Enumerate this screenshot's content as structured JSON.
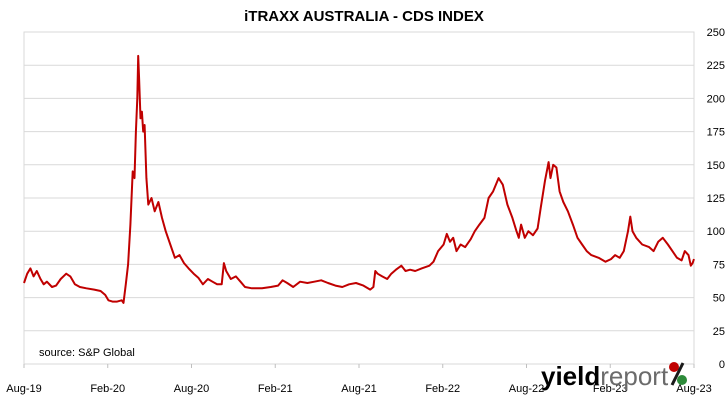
{
  "chart_data": {
    "type": "line",
    "title": "iTRAXX AUSTRALIA - CDS INDEX",
    "xlabel": "",
    "ylabel": "",
    "source_note": "source: S&P Global",
    "logo": {
      "text_bold": "yield",
      "text_light": "report",
      "symbol": "%"
    },
    "ylim": [
      0,
      250
    ],
    "y_ticks": [
      0,
      25,
      50,
      75,
      100,
      125,
      150,
      175,
      200,
      225,
      250
    ],
    "x_ticks": [
      "Aug-19",
      "Feb-20",
      "Aug-20",
      "Feb-21",
      "Aug-21",
      "Feb-22",
      "Aug-22",
      "Feb-23",
      "Aug-23"
    ],
    "x_range": [
      "2019-08-01",
      "2023-08-01"
    ],
    "grid": true,
    "series": [
      {
        "color": "#c00000",
        "points": [
          [
            "2019-08-01",
            61
          ],
          [
            "2019-08-08",
            68
          ],
          [
            "2019-08-15",
            72
          ],
          [
            "2019-08-22",
            66
          ],
          [
            "2019-08-29",
            70
          ],
          [
            "2019-09-06",
            64
          ],
          [
            "2019-09-13",
            60
          ],
          [
            "2019-09-20",
            62
          ],
          [
            "2019-10-01",
            58
          ],
          [
            "2019-10-10",
            59
          ],
          [
            "2019-10-20",
            64
          ],
          [
            "2019-11-01",
            68
          ],
          [
            "2019-11-10",
            66
          ],
          [
            "2019-11-20",
            60
          ],
          [
            "2019-12-01",
            58
          ],
          [
            "2019-12-15",
            57
          ],
          [
            "2020-01-01",
            56
          ],
          [
            "2020-01-15",
            55
          ],
          [
            "2020-01-25",
            52
          ],
          [
            "2020-02-01",
            48
          ],
          [
            "2020-02-10",
            47
          ],
          [
            "2020-02-20",
            47
          ],
          [
            "2020-03-01",
            48
          ],
          [
            "2020-03-05",
            46
          ],
          [
            "2020-03-10",
            60
          ],
          [
            "2020-03-15",
            75
          ],
          [
            "2020-03-20",
            105
          ],
          [
            "2020-03-25",
            145
          ],
          [
            "2020-03-29",
            140
          ],
          [
            "2020-04-01",
            175
          ],
          [
            "2020-04-04",
            200
          ],
          [
            "2020-04-06",
            232
          ],
          [
            "2020-04-08",
            215
          ],
          [
            "2020-04-11",
            185
          ],
          [
            "2020-04-14",
            190
          ],
          [
            "2020-04-17",
            175
          ],
          [
            "2020-04-20",
            180
          ],
          [
            "2020-04-24",
            140
          ],
          [
            "2020-04-28",
            120
          ],
          [
            "2020-05-05",
            125
          ],
          [
            "2020-05-12",
            115
          ],
          [
            "2020-05-20",
            122
          ],
          [
            "2020-05-28",
            110
          ],
          [
            "2020-06-05",
            100
          ],
          [
            "2020-06-15",
            90
          ],
          [
            "2020-06-25",
            80
          ],
          [
            "2020-07-05",
            82
          ],
          [
            "2020-07-15",
            76
          ],
          [
            "2020-07-25",
            72
          ],
          [
            "2020-08-05",
            68
          ],
          [
            "2020-08-15",
            65
          ],
          [
            "2020-08-25",
            60
          ],
          [
            "2020-09-05",
            64
          ],
          [
            "2020-09-15",
            62
          ],
          [
            "2020-09-25",
            60
          ],
          [
            "2020-10-05",
            60
          ],
          [
            "2020-10-10",
            76
          ],
          [
            "2020-10-15",
            70
          ],
          [
            "2020-10-25",
            64
          ],
          [
            "2020-11-05",
            66
          ],
          [
            "2020-11-15",
            62
          ],
          [
            "2020-11-25",
            58
          ],
          [
            "2020-12-10",
            57
          ],
          [
            "2021-01-01",
            57
          ],
          [
            "2021-01-20",
            58
          ],
          [
            "2021-02-05",
            59
          ],
          [
            "2021-02-15",
            63
          ],
          [
            "2021-02-25",
            61
          ],
          [
            "2021-03-10",
            58
          ],
          [
            "2021-03-25",
            62
          ],
          [
            "2021-04-10",
            61
          ],
          [
            "2021-04-25",
            62
          ],
          [
            "2021-05-10",
            63
          ],
          [
            "2021-05-25",
            61
          ],
          [
            "2021-06-10",
            59
          ],
          [
            "2021-06-25",
            58
          ],
          [
            "2021-07-10",
            60
          ],
          [
            "2021-07-25",
            61
          ],
          [
            "2021-08-10",
            59
          ],
          [
            "2021-08-25",
            56
          ],
          [
            "2021-09-01",
            58
          ],
          [
            "2021-09-05",
            70
          ],
          [
            "2021-09-10",
            68
          ],
          [
            "2021-09-20",
            66
          ],
          [
            "2021-10-01",
            64
          ],
          [
            "2021-10-10",
            68
          ],
          [
            "2021-10-20",
            71
          ],
          [
            "2021-11-01",
            74
          ],
          [
            "2021-11-10",
            70
          ],
          [
            "2021-11-20",
            71
          ],
          [
            "2021-12-01",
            70
          ],
          [
            "2021-12-15",
            72
          ],
          [
            "2022-01-01",
            74
          ],
          [
            "2022-01-10",
            77
          ],
          [
            "2022-01-20",
            85
          ],
          [
            "2022-02-01",
            90
          ],
          [
            "2022-02-08",
            98
          ],
          [
            "2022-02-15",
            92
          ],
          [
            "2022-02-22",
            95
          ],
          [
            "2022-03-01",
            85
          ],
          [
            "2022-03-10",
            90
          ],
          [
            "2022-03-20",
            88
          ],
          [
            "2022-04-01",
            94
          ],
          [
            "2022-04-10",
            100
          ],
          [
            "2022-04-20",
            105
          ],
          [
            "2022-05-01",
            110
          ],
          [
            "2022-05-10",
            125
          ],
          [
            "2022-05-20",
            130
          ],
          [
            "2022-06-01",
            140
          ],
          [
            "2022-06-10",
            135
          ],
          [
            "2022-06-20",
            120
          ],
          [
            "2022-07-01",
            110
          ],
          [
            "2022-07-10",
            100
          ],
          [
            "2022-07-15",
            95
          ],
          [
            "2022-07-20",
            105
          ],
          [
            "2022-07-28",
            95
          ],
          [
            "2022-08-05",
            100
          ],
          [
            "2022-08-15",
            97
          ],
          [
            "2022-08-25",
            102
          ],
          [
            "2022-09-01",
            118
          ],
          [
            "2022-09-10",
            138
          ],
          [
            "2022-09-18",
            152
          ],
          [
            "2022-09-22",
            140
          ],
          [
            "2022-09-28",
            150
          ],
          [
            "2022-10-05",
            148
          ],
          [
            "2022-10-12",
            130
          ],
          [
            "2022-10-20",
            122
          ],
          [
            "2022-10-30",
            115
          ],
          [
            "2022-11-10",
            105
          ],
          [
            "2022-11-20",
            95
          ],
          [
            "2022-11-30",
            90
          ],
          [
            "2022-12-10",
            85
          ],
          [
            "2022-12-20",
            82
          ],
          [
            "2023-01-05",
            80
          ],
          [
            "2023-01-20",
            77
          ],
          [
            "2023-02-01",
            79
          ],
          [
            "2023-02-10",
            82
          ],
          [
            "2023-02-20",
            80
          ],
          [
            "2023-03-01",
            85
          ],
          [
            "2023-03-10",
            100
          ],
          [
            "2023-03-15",
            111
          ],
          [
            "2023-03-20",
            100
          ],
          [
            "2023-03-28",
            95
          ],
          [
            "2023-04-10",
            90
          ],
          [
            "2023-04-25",
            88
          ],
          [
            "2023-05-05",
            85
          ],
          [
            "2023-05-15",
            92
          ],
          [
            "2023-05-25",
            95
          ],
          [
            "2023-06-05",
            90
          ],
          [
            "2023-06-15",
            85
          ],
          [
            "2023-06-25",
            80
          ],
          [
            "2023-07-05",
            78
          ],
          [
            "2023-07-12",
            85
          ],
          [
            "2023-07-20",
            82
          ],
          [
            "2023-07-25",
            74
          ],
          [
            "2023-07-29",
            76
          ],
          [
            "2023-08-01",
            79
          ]
        ]
      }
    ]
  }
}
